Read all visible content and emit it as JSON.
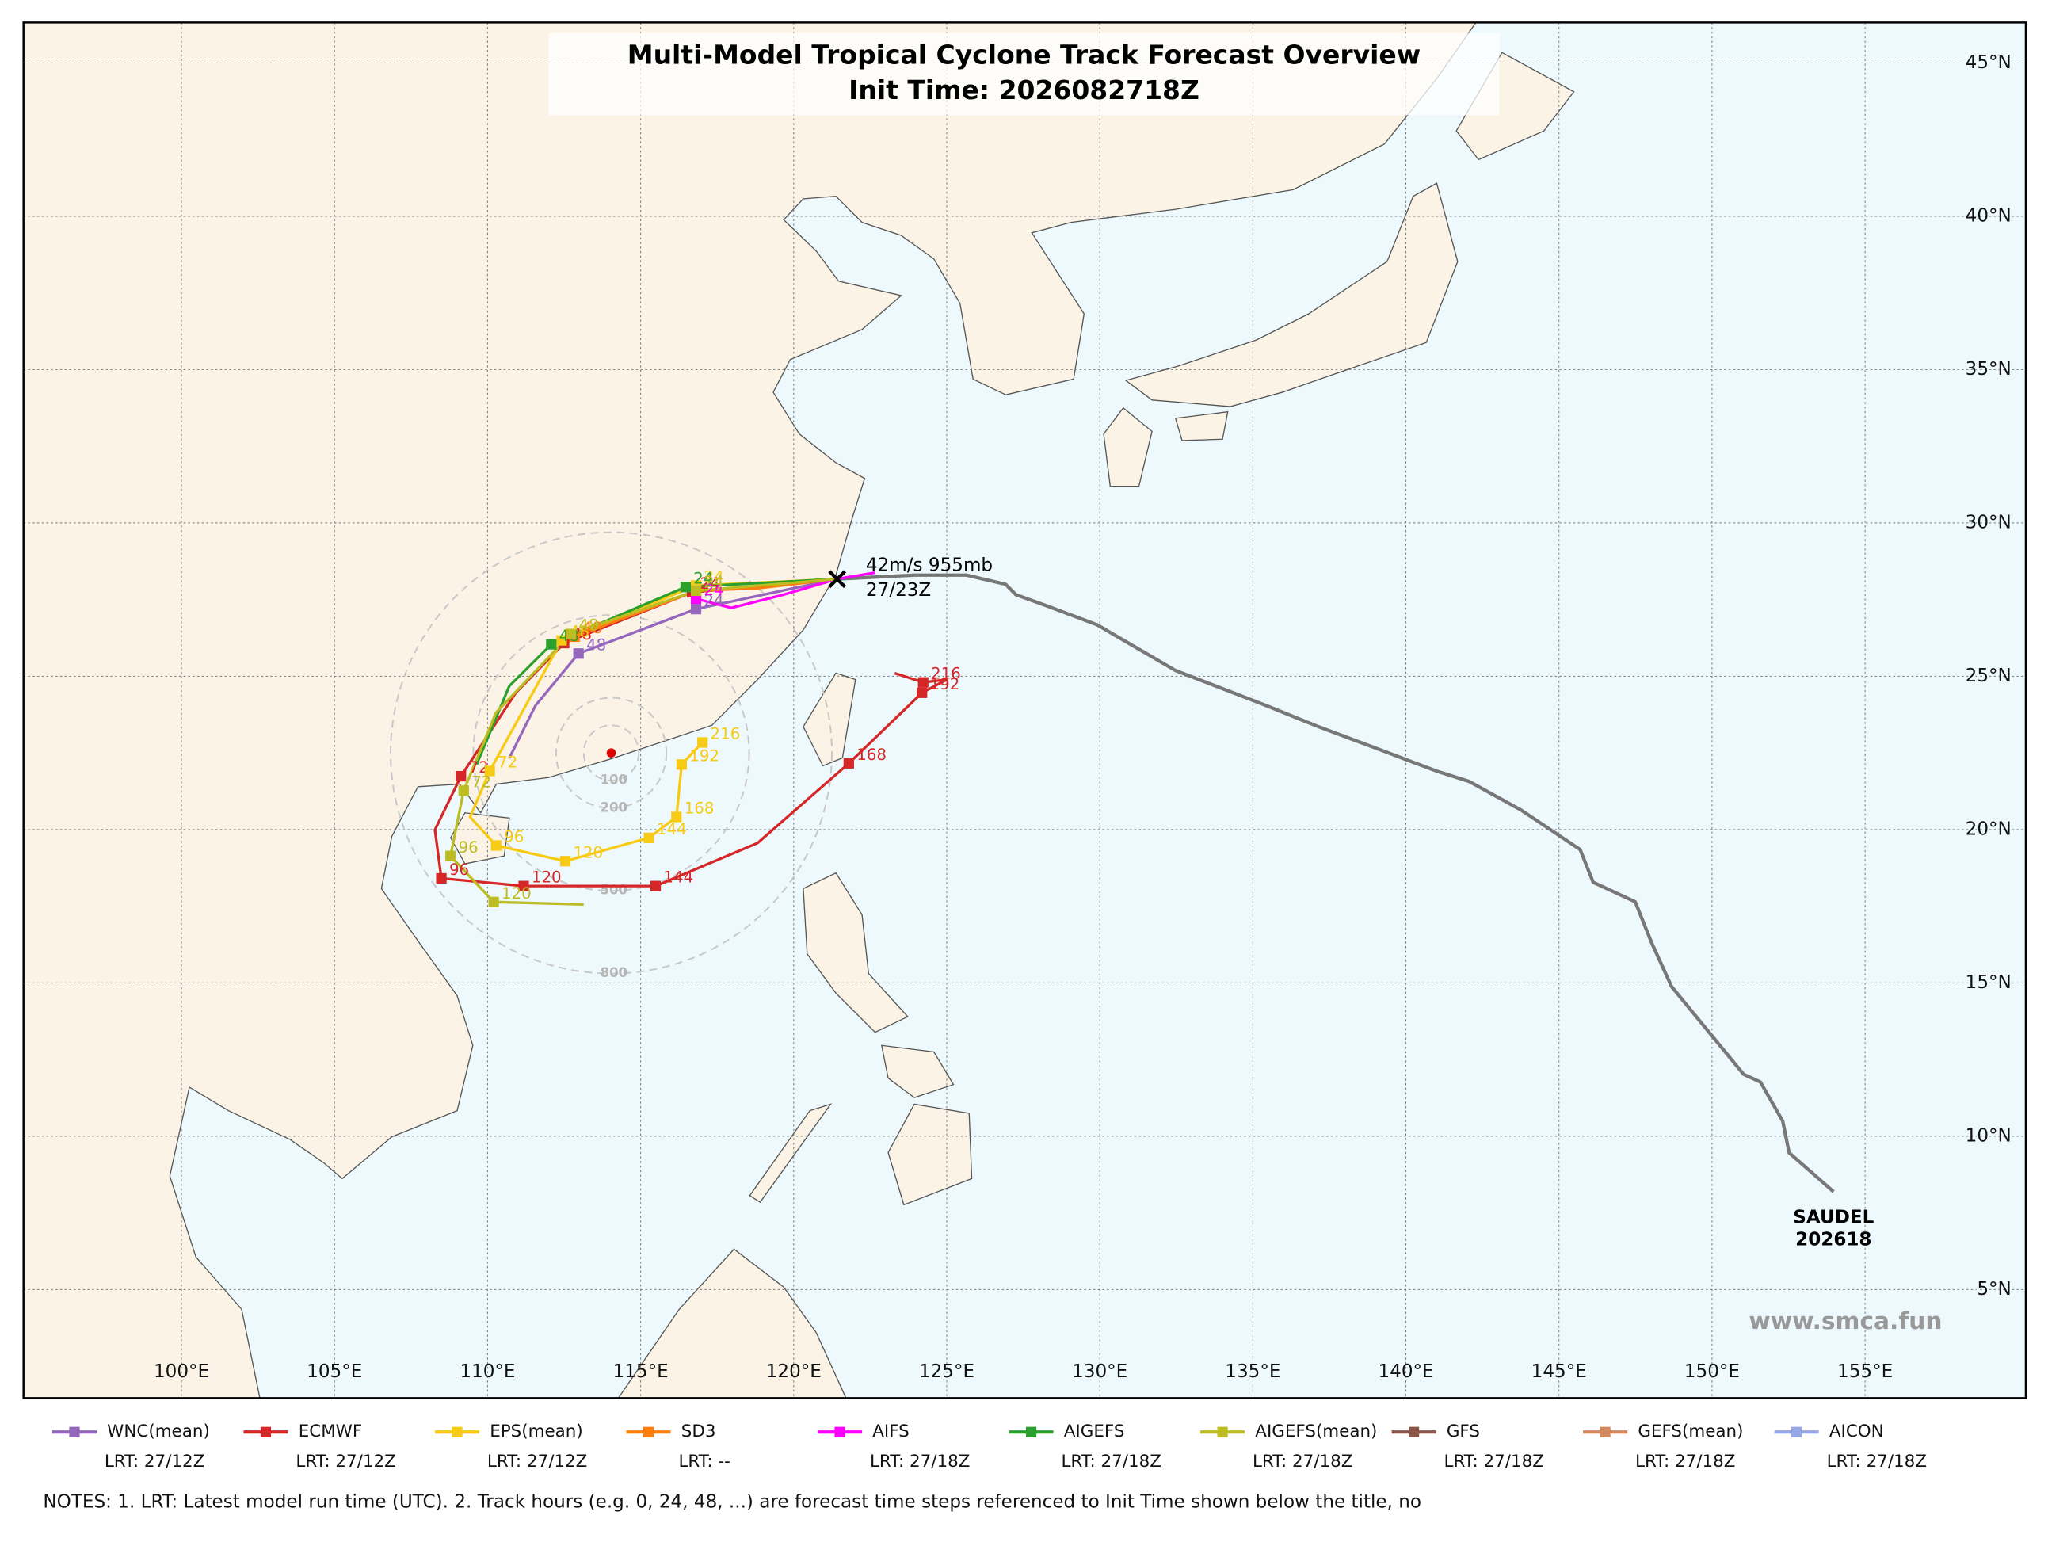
{
  "title": "Multi-Model Tropical Cyclone Track Forecast Overview",
  "subtitle": "Init Time: 2026082718Z",
  "map": {
    "xlim": [
      94.84,
      160.25
    ],
    "ylim": [
      1.46,
      46.32
    ],
    "xticks": [
      {
        "value": 100,
        "label": "100°E"
      },
      {
        "value": 105,
        "label": "105°E"
      },
      {
        "value": 110,
        "label": "110°E"
      },
      {
        "value": 115,
        "label": "115°E"
      },
      {
        "value": 120,
        "label": "120°E"
      },
      {
        "value": 125,
        "label": "125°E"
      },
      {
        "value": 130,
        "label": "130°E"
      },
      {
        "value": 135,
        "label": "135°E"
      },
      {
        "value": 140,
        "label": "140°E"
      },
      {
        "value": 145,
        "label": "145°E"
      },
      {
        "value": 150,
        "label": "150°E"
      },
      {
        "value": 155,
        "label": "155°E"
      }
    ],
    "yticks": [
      {
        "value": 5,
        "label": "5°N"
      },
      {
        "value": 10,
        "label": "10°N"
      },
      {
        "value": 15,
        "label": "15°N"
      },
      {
        "value": 20,
        "label": "20°N"
      },
      {
        "value": 25,
        "label": "25°N"
      },
      {
        "value": 30,
        "label": "30°N"
      },
      {
        "value": 35,
        "label": "35°N"
      },
      {
        "value": 40,
        "label": "40°N"
      },
      {
        "value": 45,
        "label": "45°N"
      }
    ],
    "grid": true
  },
  "storm": {
    "name": "SAUDEL",
    "id": "202618",
    "color": "#777777"
  },
  "current": {
    "lon": 121.42,
    "lat": 28.17,
    "intensity": "42m/s 955mb",
    "time": "27/23Z"
  },
  "best_track": {
    "lon": [
      153.97,
      152.52,
      152.31,
      151.58,
      151.03,
      148.68,
      148.04,
      147.49,
      146.12,
      145.69,
      143.77,
      142.07,
      141.0,
      139.3,
      137.16,
      135.45,
      132.47,
      129.91,
      128.2,
      127.26,
      126.92,
      125.64,
      123.94,
      121.42
    ],
    "lat": [
      8.19,
      9.46,
      10.49,
      11.77,
      12.02,
      14.88,
      16.28,
      17.65,
      18.28,
      19.35,
      20.63,
      21.57,
      21.91,
      22.55,
      23.35,
      24.04,
      25.19,
      26.68,
      27.32,
      27.66,
      28.0,
      28.3,
      28.3,
      28.17
    ]
  },
  "range_rings": {
    "center_lon": 114.04,
    "center_lat": 22.5,
    "radii": [
      100,
      200,
      500,
      800
    ]
  },
  "tracks": [
    {
      "name": "WNC(mean)",
      "color": "#9467bd",
      "lrt": "LRT: 27/12Z",
      "lon": [
        121.42,
        116.81,
        112.97,
        111.56,
        110.71
      ],
      "lat": [
        28.17,
        27.19,
        25.74,
        24.04,
        22.33
      ],
      "hours": [
        null,
        24,
        48,
        null,
        null
      ]
    },
    {
      "name": "ECMWF",
      "color": "#d62728",
      "lrt": "LRT: 27/12Z",
      "lon": [
        121.42,
        119.24,
        116.68,
        112.5,
        110.92,
        109.13,
        108.28,
        108.49,
        111.18,
        115.49,
        118.82,
        121.8,
        124.19,
        125.0,
        124.23,
        123.3
      ],
      "lat": [
        28.17,
        27.96,
        27.74,
        26.08,
        24.46,
        21.74,
        19.99,
        18.41,
        18.16,
        18.16,
        19.56,
        22.16,
        24.46,
        24.89,
        24.8,
        25.1
      ],
      "hours": [
        null,
        null,
        24,
        48,
        null,
        72,
        null,
        96,
        120,
        144,
        null,
        168,
        192,
        null,
        216,
        null
      ]
    },
    {
      "name": "EPS(mean)",
      "color": "#f7cb15",
      "lrt": "LRT: 27/12Z",
      "lon": [
        121.42,
        116.81,
        112.42,
        110.07,
        109.43,
        110.28,
        112.54,
        115.27,
        116.17,
        116.34,
        117.02
      ],
      "lat": [
        28.17,
        27.96,
        26.17,
        21.91,
        20.41,
        19.48,
        18.97,
        19.73,
        20.41,
        22.12,
        22.84
      ],
      "hours": [
        null,
        24,
        48,
        72,
        null,
        96,
        120,
        144,
        168,
        192,
        216
      ]
    },
    {
      "name": "SD3",
      "color": "#ff7f0e",
      "lrt": "LRT: --",
      "lon": [
        121.42,
        118.82,
        116.81,
        112.84
      ],
      "lat": [
        28.17,
        27.87,
        27.79,
        26.29
      ],
      "hours": [
        null,
        null,
        24,
        48
      ]
    },
    {
      "name": "AIFS",
      "color": "#ff00ff",
      "lrt": "LRT: 27/18Z",
      "lon": [
        122.66,
        121.42,
        119.67,
        117.96,
        116.81
      ],
      "lat": [
        28.38,
        28.17,
        27.66,
        27.23,
        27.53
      ],
      "hours": [
        null,
        null,
        null,
        null,
        24
      ]
    },
    {
      "name": "AIGEFS",
      "color": "#2ca02c",
      "lrt": "LRT: 27/18Z",
      "lon": [
        121.42,
        116.47,
        112.08,
        110.71,
        109.64
      ],
      "lat": [
        28.17,
        27.91,
        26.04,
        24.68,
        22.12
      ],
      "hours": [
        null,
        24,
        48,
        null,
        null
      ]
    },
    {
      "name": "AIGEFS(mean)",
      "color": "#bcbd22",
      "lrt": "LRT: 27/18Z",
      "lon": [
        121.42,
        116.81,
        112.72,
        110.28,
        109.22,
        108.79,
        110.2,
        113.14
      ],
      "lat": [
        28.17,
        27.79,
        26.38,
        23.82,
        21.27,
        19.14,
        17.64,
        17.56
      ],
      "hours": [
        null,
        24,
        48,
        null,
        72,
        96,
        120,
        null
      ]
    },
    {
      "name": "GFS",
      "color": "#8c564b",
      "lrt": "LRT: 27/18Z"
    },
    {
      "name": "GEFS(mean)",
      "color": "#d4885e",
      "lrt": "LRT: 27/18Z"
    },
    {
      "name": "AICON",
      "color": "#97a6e6",
      "lrt": "LRT: 27/18Z"
    }
  ],
  "watermark": "www.smca.fun",
  "notes": "NOTES: 1. LRT: Latest model run time (UTC).  2. Track hours (e.g. 0, 24, 48, ...) are forecast time steps referenced to Init Time shown below the title, no"
}
